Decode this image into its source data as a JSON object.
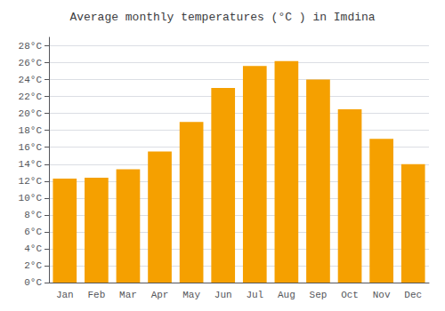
{
  "chart_data": {
    "type": "bar",
    "title": "Average monthly temperatures (°C ) in Imdina",
    "categories": [
      "Jan",
      "Feb",
      "Mar",
      "Apr",
      "May",
      "Jun",
      "Jul",
      "Aug",
      "Sep",
      "Oct",
      "Nov",
      "Dec"
    ],
    "values": [
      12.3,
      12.4,
      13.4,
      15.5,
      19.0,
      23.0,
      25.6,
      26.2,
      24.0,
      20.5,
      17.0,
      14.0
    ],
    "color": "#F5A000",
    "ylim": [
      0,
      29
    ],
    "yticks": [
      {
        "value": 0,
        "label": "0°C"
      },
      {
        "value": 2,
        "label": "2°C"
      },
      {
        "value": 4,
        "label": "4°C"
      },
      {
        "value": 6,
        "label": "6°C"
      },
      {
        "value": 8,
        "label": "8°C"
      },
      {
        "value": 10,
        "label": "10°C"
      },
      {
        "value": 12,
        "label": "12°C"
      },
      {
        "value": 14,
        "label": "14°C"
      },
      {
        "value": 16,
        "label": "16°C"
      },
      {
        "value": 18,
        "label": "18°C"
      },
      {
        "value": 20,
        "label": "20°C"
      },
      {
        "value": 22,
        "label": "22°C"
      },
      {
        "value": 24,
        "label": "24°C"
      },
      {
        "value": 26,
        "label": "26°C"
      },
      {
        "value": 28,
        "label": "28°C"
      }
    ],
    "grid": true
  }
}
